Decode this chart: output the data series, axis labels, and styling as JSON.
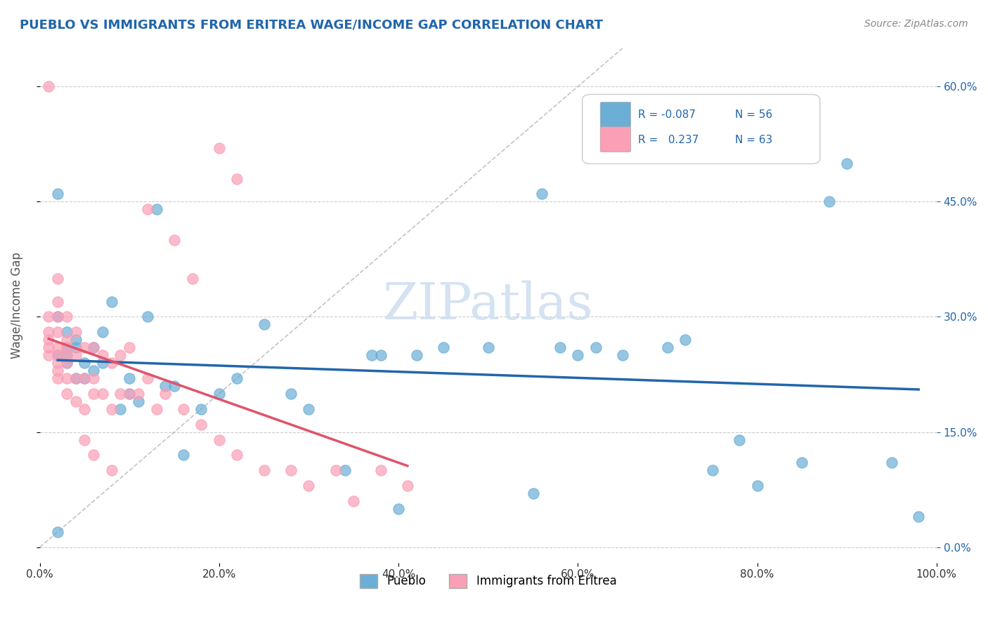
{
  "title": "PUEBLO VS IMMIGRANTS FROM ERITREA WAGE/INCOME GAP CORRELATION CHART",
  "source": "Source: ZipAtlas.com",
  "xlabel": "",
  "ylabel": "Wage/Income Gap",
  "xlim": [
    0.0,
    1.0
  ],
  "ylim": [
    -0.02,
    0.65
  ],
  "xticks": [
    0.0,
    0.2,
    0.4,
    0.6,
    0.8,
    1.0
  ],
  "xtick_labels": [
    "0.0%",
    "20.0%",
    "40.0%",
    "60.0%",
    "80.0%",
    "100.0%"
  ],
  "ytick_labels_right": [
    "0.0%",
    "15.0%",
    "30.0%",
    "45.0%",
    "60.0%"
  ],
  "ytick_vals_right": [
    0.0,
    0.15,
    0.3,
    0.45,
    0.6
  ],
  "gridline_color": "#cccccc",
  "background_color": "#ffffff",
  "watermark": "ZIPatlas",
  "watermark_color": "#d0dff0",
  "blue_color": "#6baed6",
  "pink_color": "#fa9fb5",
  "blue_line_color": "#2166ac",
  "pink_line_color": "#e0536a",
  "legend_r_color": "#2166ac",
  "pueblo_scatter_x": [
    0.02,
    0.02,
    0.02,
    0.02,
    0.03,
    0.03,
    0.03,
    0.03,
    0.04,
    0.04,
    0.04,
    0.05,
    0.05,
    0.06,
    0.06,
    0.07,
    0.07,
    0.08,
    0.09,
    0.1,
    0.1,
    0.11,
    0.12,
    0.13,
    0.14,
    0.15,
    0.16,
    0.18,
    0.2,
    0.22,
    0.25,
    0.28,
    0.3,
    0.34,
    0.37,
    0.38,
    0.4,
    0.42,
    0.45,
    0.5,
    0.55,
    0.56,
    0.58,
    0.6,
    0.62,
    0.65,
    0.7,
    0.72,
    0.75,
    0.78,
    0.8,
    0.85,
    0.88,
    0.9,
    0.95,
    0.98
  ],
  "pueblo_scatter_y": [
    0.02,
    0.25,
    0.3,
    0.46,
    0.24,
    0.25,
    0.26,
    0.28,
    0.22,
    0.26,
    0.27,
    0.22,
    0.24,
    0.23,
    0.26,
    0.24,
    0.28,
    0.32,
    0.18,
    0.2,
    0.22,
    0.19,
    0.3,
    0.44,
    0.21,
    0.21,
    0.12,
    0.18,
    0.2,
    0.22,
    0.29,
    0.2,
    0.18,
    0.1,
    0.25,
    0.25,
    0.05,
    0.25,
    0.26,
    0.26,
    0.07,
    0.46,
    0.26,
    0.25,
    0.26,
    0.25,
    0.26,
    0.27,
    0.1,
    0.14,
    0.08,
    0.11,
    0.45,
    0.5,
    0.11,
    0.04
  ],
  "eritrea_scatter_x": [
    0.01,
    0.01,
    0.01,
    0.01,
    0.01,
    0.01,
    0.02,
    0.02,
    0.02,
    0.02,
    0.02,
    0.02,
    0.02,
    0.02,
    0.02,
    0.03,
    0.03,
    0.03,
    0.03,
    0.03,
    0.03,
    0.03,
    0.04,
    0.04,
    0.04,
    0.04,
    0.05,
    0.05,
    0.05,
    0.06,
    0.06,
    0.06,
    0.07,
    0.07,
    0.08,
    0.08,
    0.09,
    0.09,
    0.1,
    0.1,
    0.11,
    0.12,
    0.13,
    0.14,
    0.16,
    0.18,
    0.2,
    0.22,
    0.25,
    0.28,
    0.3,
    0.33,
    0.35,
    0.38,
    0.41,
    0.2,
    0.22,
    0.12,
    0.15,
    0.17,
    0.05,
    0.06,
    0.08
  ],
  "eritrea_scatter_y": [
    0.25,
    0.26,
    0.27,
    0.28,
    0.3,
    0.6,
    0.22,
    0.23,
    0.24,
    0.25,
    0.26,
    0.28,
    0.3,
    0.32,
    0.35,
    0.2,
    0.22,
    0.24,
    0.25,
    0.26,
    0.27,
    0.3,
    0.19,
    0.22,
    0.25,
    0.28,
    0.18,
    0.22,
    0.26,
    0.2,
    0.22,
    0.26,
    0.2,
    0.25,
    0.18,
    0.24,
    0.2,
    0.25,
    0.2,
    0.26,
    0.2,
    0.22,
    0.18,
    0.2,
    0.18,
    0.16,
    0.14,
    0.12,
    0.1,
    0.1,
    0.08,
    0.1,
    0.06,
    0.1,
    0.08,
    0.52,
    0.48,
    0.44,
    0.4,
    0.35,
    0.14,
    0.12,
    0.1
  ]
}
